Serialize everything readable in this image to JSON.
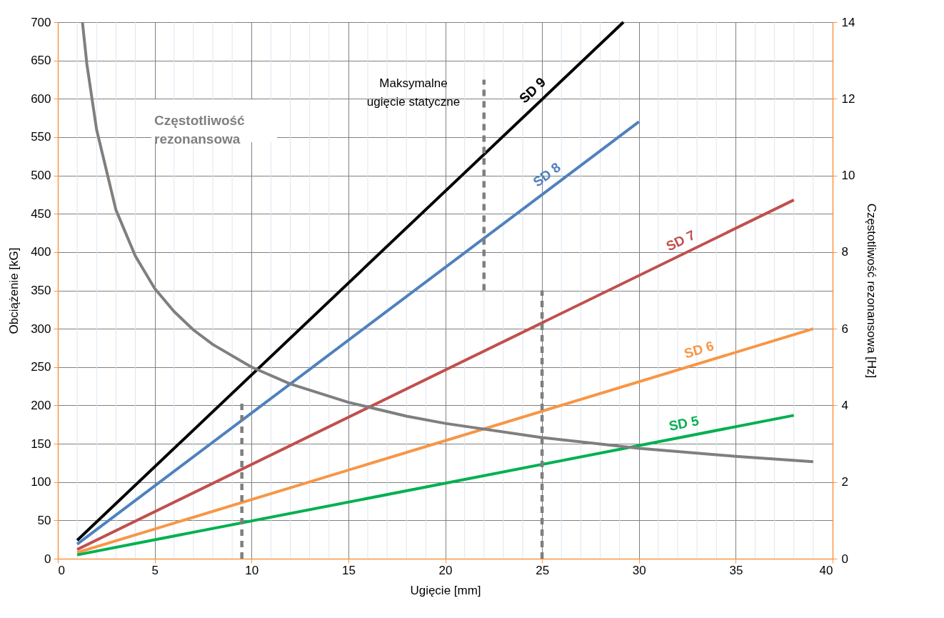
{
  "chart_data": {
    "type": "line",
    "xlabel": "Ugięcie [mm]",
    "ylabel": "Obciążenie [kG]",
    "y2label": "Częstotliwość rezonansowa [Hz]",
    "annotations": [
      "Częstotliwość rezonansowa",
      "Maksymalne ugięcie statyczne"
    ],
    "xlim": [
      0,
      40
    ],
    "ylim": [
      0,
      700
    ],
    "y2lim": [
      0,
      14
    ],
    "xticks": [
      0,
      {
        "value": 1,
        "label": null
      },
      {
        "value": 2,
        "label": null
      },
      {
        "value": 3,
        "label": null
      },
      {
        "value": 4,
        "label": null
      },
      5,
      {
        "value": 6,
        "label": null
      },
      {
        "value": 7,
        "label": null
      },
      {
        "value": 8,
        "label": null
      },
      {
        "value": 9,
        "label": null
      },
      10,
      {
        "value": 11,
        "label": null
      },
      {
        "value": 12,
        "label": null
      },
      {
        "value": 13,
        "label": null
      },
      {
        "value": 14,
        "label": null
      },
      15,
      {
        "value": 16,
        "label": null
      },
      {
        "value": 17,
        "label": null
      },
      {
        "value": 18,
        "label": null
      },
      {
        "value": 19,
        "label": null
      },
      20,
      {
        "value": 21,
        "label": null
      },
      {
        "value": 22,
        "label": null
      },
      {
        "value": 23,
        "label": null
      },
      {
        "value": 24,
        "label": null
      },
      25,
      {
        "value": 26,
        "label": null
      },
      {
        "value": 27,
        "label": null
      },
      {
        "value": 28,
        "label": null
      },
      {
        "value": 29,
        "label": null
      },
      30,
      {
        "value": 31,
        "label": null
      },
      {
        "value": 32,
        "label": null
      },
      {
        "value": 33,
        "label": null
      },
      {
        "value": 34,
        "label": null
      },
      35,
      {
        "value": 36,
        "label": null
      },
      {
        "value": 37,
        "label": null
      },
      {
        "value": 38,
        "label": null
      },
      {
        "value": 39,
        "label": null
      },
      40
    ],
    "yticks": [
      0,
      50,
      100,
      150,
      200,
      250,
      300,
      350,
      400,
      450,
      500,
      550,
      600,
      650,
      700
    ],
    "y2ticks": [
      0,
      2,
      4,
      6,
      8,
      10,
      12,
      14
    ],
    "grid": true,
    "marker": "none",
    "line_style": "solid",
    "series": [
      {
        "name": "SD 9",
        "color": "#000000",
        "x": [
          1,
          29.2
        ],
        "values": [
          24,
          700
        ]
      },
      {
        "name": "SD 8",
        "color": "#4f81bd",
        "x": [
          1,
          30
        ],
        "values": [
          19,
          570
        ]
      },
      {
        "name": "SD 7",
        "color": "#c0504d",
        "x": [
          1,
          38
        ],
        "values": [
          12,
          468
        ]
      },
      {
        "name": "SD 6",
        "color": "#f79646",
        "x": [
          1,
          39
        ],
        "values": [
          8,
          300
        ]
      },
      {
        "name": "SD 5",
        "color": "#00b050",
        "x": [
          1,
          38
        ],
        "values": [
          5,
          187
        ]
      },
      {
        "color": "#7f7f7f",
        "axis": "y2",
        "x": [
          1.27,
          1.5,
          2,
          3,
          4,
          5,
          6,
          7,
          8,
          10,
          12,
          15,
          18,
          20,
          25,
          30,
          35,
          39
        ],
        "values": [
          14,
          12.9,
          11.2,
          9.1,
          7.9,
          7.05,
          6.45,
          5.97,
          5.59,
          5.0,
          4.56,
          4.08,
          3.72,
          3.53,
          3.16,
          2.88,
          2.67,
          2.53
        ]
      },
      {
        "color": "#7f7f7f",
        "line_style": "dashed",
        "x": [
          9.5,
          9.5
        ],
        "values": [
          0,
          205
        ]
      },
      {
        "color": "#7f7f7f",
        "line_style": "dashed",
        "x": [
          22,
          22
        ],
        "values": [
          350,
          625
        ]
      },
      {
        "color": "#7f7f7f",
        "line_style": "dashed",
        "x": [
          25,
          25
        ],
        "values": [
          0,
          350
        ]
      }
    ]
  }
}
